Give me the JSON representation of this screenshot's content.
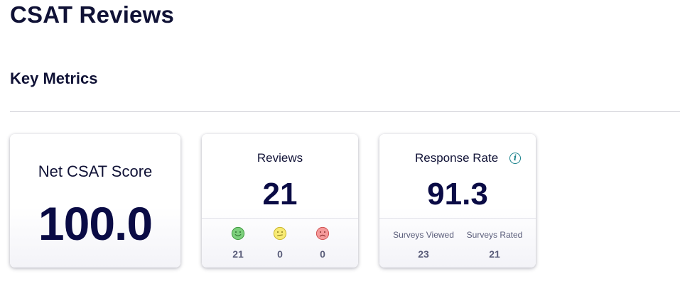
{
  "page": {
    "title": "CSAT Reviews",
    "section_title": "Key Metrics"
  },
  "cards": {
    "net_csat": {
      "label": "Net CSAT Score",
      "value": "100.0"
    },
    "reviews": {
      "label": "Reviews",
      "value": "21",
      "breakdown": [
        {
          "icon": "happy-face-icon",
          "color": "#5cb85c",
          "count": "21"
        },
        {
          "icon": "neutral-face-icon",
          "color": "#f4e04d",
          "count": "0"
        },
        {
          "icon": "sad-face-icon",
          "color": "#f26b6b",
          "count": "0"
        }
      ]
    },
    "response_rate": {
      "label": "Response Rate",
      "info_icon": "info-icon",
      "value": "91.3",
      "surveys_viewed_label": "Surveys Viewed",
      "surveys_viewed_value": "23",
      "surveys_rated_label": "Surveys Rated",
      "surveys_rated_value": "21"
    }
  },
  "colors": {
    "title": "#101236",
    "metric_value": "#0a0b45",
    "muted": "#5a5d7a",
    "info_accent": "#17808a"
  }
}
